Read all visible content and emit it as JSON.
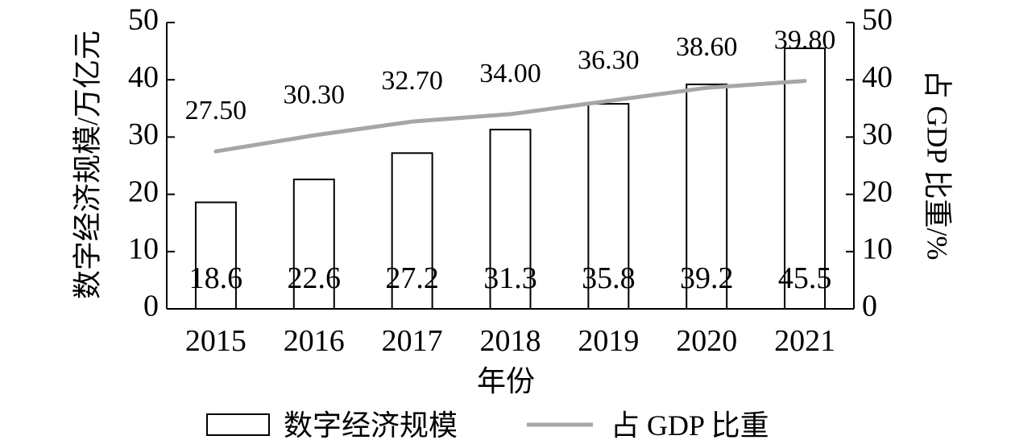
{
  "chart_data": {
    "type": "bar",
    "categories": [
      "2015",
      "2016",
      "2017",
      "2018",
      "2019",
      "2020",
      "2021"
    ],
    "series": [
      {
        "name": "数字经济规模",
        "kind": "bar",
        "axis": "left",
        "values": [
          18.6,
          22.6,
          27.2,
          31.3,
          35.8,
          39.2,
          45.5
        ],
        "labels": [
          "18.6",
          "22.6",
          "27.2",
          "31.3",
          "35.8",
          "39.2",
          "45.5"
        ]
      },
      {
        "name": "占 GDP 比重",
        "kind": "line",
        "axis": "right",
        "color": "#a3a8a6",
        "values": [
          27.5,
          30.3,
          32.7,
          34.0,
          36.3,
          38.6,
          39.8
        ],
        "labels": [
          "27.50",
          "30.30",
          "32.70",
          "34.00",
          "36.30",
          "38.60",
          "39.80"
        ]
      }
    ],
    "xlabel": "年份",
    "ylabel": "数字经济规模/万亿元",
    "ylabel_right": "占 GDP 比重/%",
    "ylim": [
      0,
      50
    ],
    "ylim_right": [
      0,
      50
    ],
    "yticks": [
      "0",
      "10",
      "20",
      "30",
      "40",
      "50"
    ],
    "yticks_right": [
      "0",
      "10",
      "20",
      "30",
      "40",
      "50"
    ],
    "grid": false,
    "legend_position": "bottom"
  }
}
